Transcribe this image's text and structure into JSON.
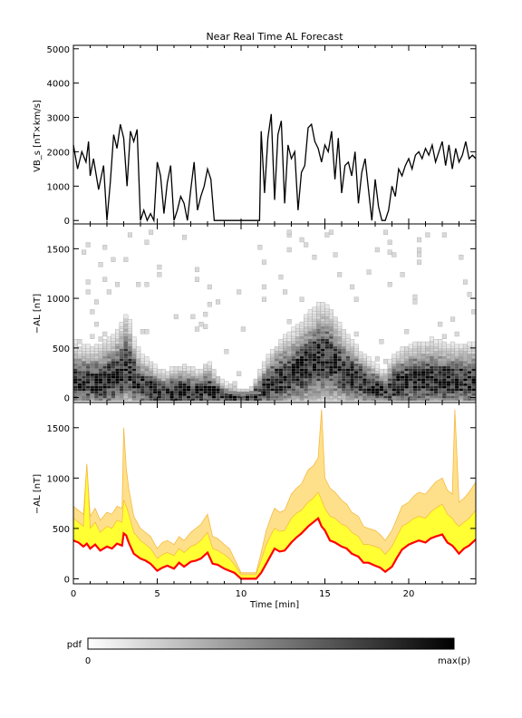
{
  "chart_data": [
    {
      "type": "line",
      "title": "Near Real Time AL Forecast",
      "xlabel": "",
      "ylabel": "VB_s [nT×km/s]",
      "ylim": [
        -100,
        5100
      ],
      "xlim": [
        0,
        24
      ],
      "yticks": [
        "0",
        "1000",
        "2000",
        "3000",
        "4000",
        "5000"
      ],
      "series": [
        {
          "name": "",
          "x": [
            0.0,
            0.25,
            0.5,
            0.75,
            0.9,
            1.0,
            1.2,
            1.5,
            1.8,
            2.0,
            2.2,
            2.4,
            2.6,
            2.8,
            3.0,
            3.2,
            3.4,
            3.6,
            3.8,
            4.0,
            4.2,
            4.4,
            4.6,
            4.8,
            5.0,
            5.2,
            5.4,
            5.6,
            5.8,
            6.0,
            6.2,
            6.4,
            6.6,
            6.8,
            7.0,
            7.2,
            7.4,
            7.6,
            7.8,
            8.0,
            8.2,
            8.4,
            8.6,
            8.8,
            9.0,
            9.5,
            10.0,
            10.5,
            11.0,
            11.1,
            11.2,
            11.4,
            11.6,
            11.8,
            12.0,
            12.2,
            12.4,
            12.6,
            12.8,
            13.0,
            13.2,
            13.4,
            13.6,
            13.8,
            14.0,
            14.2,
            14.4,
            14.6,
            14.8,
            15.0,
            15.2,
            15.4,
            15.6,
            15.8,
            16.0,
            16.2,
            16.4,
            16.6,
            16.8,
            17.0,
            17.2,
            17.4,
            17.6,
            17.8,
            18.0,
            18.2,
            18.4,
            18.6,
            18.8,
            19.0,
            19.2,
            19.4,
            19.6,
            19.8,
            20.0,
            20.2,
            20.4,
            20.6,
            20.8,
            21.0,
            21.2,
            21.4,
            21.6,
            21.8,
            22.0,
            22.2,
            22.4,
            22.6,
            22.8,
            23.0,
            23.2,
            23.4,
            23.6,
            23.8,
            24.0
          ],
          "y": [
            2200,
            1500,
            2000,
            1700,
            2300,
            1300,
            1800,
            900,
            1600,
            0,
            1100,
            2500,
            2100,
            2800,
            2400,
            1000,
            2600,
            2300,
            2650,
            0,
            300,
            0,
            200,
            0,
            1700,
            1300,
            200,
            1100,
            1600,
            0,
            300,
            700,
            500,
            0,
            900,
            1700,
            300,
            700,
            1000,
            1500,
            1200,
            0,
            0,
            0,
            0,
            0,
            0,
            0,
            0,
            0,
            2600,
            800,
            2400,
            3100,
            600,
            2500,
            2900,
            500,
            2200,
            1800,
            2000,
            300,
            1400,
            1600,
            2700,
            2800,
            2300,
            2100,
            1700,
            2200,
            2000,
            2600,
            1200,
            2400,
            800,
            1600,
            1700,
            1300,
            2000,
            500,
            1400,
            1800,
            900,
            0,
            1200,
            400,
            0,
            0,
            300,
            1000,
            700,
            1500,
            1300,
            1600,
            1800,
            1500,
            1900,
            2000,
            1800,
            2100,
            1900,
            2200,
            1700,
            2000,
            2300,
            1600,
            2200,
            1500,
            2100,
            1700,
            1900,
            2300,
            1800,
            1900,
            1800
          ]
        }
      ]
    },
    {
      "type": "heatmap",
      "title": "",
      "xlabel": "",
      "ylabel": "−AL [nT]",
      "ylim": [
        -50,
        1750
      ],
      "xlim": [
        0,
        24
      ],
      "yticks": [
        "0",
        "500",
        "1000",
        "1500"
      ],
      "colorbar": {
        "label": "pdf",
        "min_label": "0",
        "max_label": "max(p)"
      },
      "pdf_peak": {
        "x": [
          0,
          0.5,
          1,
          1.5,
          2,
          2.5,
          3,
          3.2,
          3.5,
          4,
          4.5,
          5,
          5.5,
          6,
          6.5,
          7,
          7.5,
          8,
          8.5,
          9,
          9.5,
          10,
          10.5,
          11,
          11.5,
          12,
          12.5,
          13,
          13.5,
          14,
          14.5,
          15,
          15.5,
          16,
          16.5,
          17,
          17.5,
          18,
          18.5,
          19,
          19.5,
          20,
          20.5,
          21,
          21.5,
          22,
          22.5,
          23,
          23.5,
          24
        ],
        "y": [
          180,
          170,
          190,
          160,
          200,
          220,
          300,
          400,
          250,
          150,
          120,
          80,
          60,
          70,
          90,
          80,
          70,
          110,
          60,
          40,
          30,
          20,
          20,
          60,
          120,
          180,
          220,
          250,
          300,
          350,
          400,
          420,
          380,
          300,
          250,
          200,
          150,
          120,
          80,
          130,
          170,
          190,
          200,
          200,
          200,
          190,
          190,
          190,
          190,
          190
        ]
      },
      "spread": [
        550,
        520,
        500,
        520,
        560,
        600,
        700,
        750,
        560,
        420,
        380,
        320,
        300,
        340,
        360,
        340,
        300,
        380,
        280,
        160,
        140,
        90,
        90,
        260,
        400,
        500,
        560,
        600,
        640,
        700,
        760,
        780,
        700,
        600,
        520,
        440,
        380,
        340,
        260,
        400,
        460,
        500,
        540,
        560,
        560,
        540,
        520,
        520,
        520,
        520
      ]
    },
    {
      "type": "area",
      "title": "",
      "xlabel": "Time [min]",
      "ylabel": "−AL [nT]",
      "ylim": [
        -50,
        1750
      ],
      "xlim": [
        0,
        24
      ],
      "xticks": [
        "0",
        "5",
        "10",
        "15",
        "20"
      ],
      "yticks": [
        "0",
        "500",
        "1000",
        "1500"
      ],
      "series": [
        {
          "name": "",
          "x": [
            0.0,
            0.3,
            0.6,
            0.8,
            1.0,
            1.3,
            1.6,
            2.0,
            2.3,
            2.6,
            2.9,
            3.0,
            3.15,
            3.3,
            3.6,
            4.0,
            4.3,
            4.6,
            5.0,
            5.3,
            5.6,
            6.0,
            6.3,
            6.6,
            7.0,
            7.3,
            7.6,
            8.0,
            8.3,
            8.6,
            9.0,
            9.3,
            9.6,
            10.0,
            10.3,
            10.6,
            10.9,
            11.2,
            11.5,
            11.8,
            12.0,
            12.3,
            12.6,
            13.0,
            13.3,
            13.6,
            14.0,
            14.3,
            14.6,
            14.8,
            15.0,
            15.3,
            15.6,
            16.0,
            16.3,
            16.6,
            17.0,
            17.3,
            17.6,
            18.0,
            18.3,
            18.6,
            19.0,
            19.3,
            19.6,
            20.0,
            20.3,
            20.6,
            21.0,
            21.3,
            21.6,
            22.0,
            22.3,
            22.6,
            22.75,
            23.0,
            23.3,
            23.6,
            24.0
          ],
          "y": [
            380,
            360,
            320,
            350,
            300,
            340,
            280,
            320,
            300,
            350,
            330,
            450,
            430,
            360,
            250,
            200,
            180,
            150,
            80,
            110,
            130,
            100,
            160,
            120,
            170,
            180,
            200,
            260,
            150,
            140,
            100,
            80,
            60,
            0,
            0,
            0,
            0,
            60,
            150,
            240,
            300,
            270,
            280,
            360,
            410,
            450,
            520,
            560,
            600,
            520,
            480,
            380,
            360,
            320,
            300,
            250,
            220,
            160,
            160,
            130,
            110,
            70,
            120,
            210,
            290,
            340,
            360,
            380,
            360,
            400,
            420,
            440,
            360,
            330,
            300,
            250,
            300,
            330,
            390
          ]
        },
        {
          "name": "",
          "x": [
            0.0,
            0.3,
            0.6,
            0.8,
            1.0,
            1.3,
            1.6,
            2.0,
            2.3,
            2.6,
            2.9,
            3.0,
            3.15,
            3.3,
            3.6,
            4.0,
            4.3,
            4.6,
            5.0,
            5.3,
            5.6,
            6.0,
            6.3,
            6.6,
            7.0,
            7.3,
            7.6,
            8.0,
            8.3,
            8.6,
            9.0,
            9.3,
            9.6,
            10.0,
            10.3,
            10.6,
            10.9,
            11.2,
            11.5,
            11.8,
            12.0,
            12.3,
            12.6,
            13.0,
            13.3,
            13.6,
            14.0,
            14.3,
            14.6,
            14.8,
            15.0,
            15.3,
            15.6,
            16.0,
            16.3,
            16.6,
            17.0,
            17.3,
            17.6,
            18.0,
            18.3,
            18.6,
            19.0,
            19.3,
            19.6,
            20.0,
            20.3,
            20.6,
            21.0,
            21.3,
            21.6,
            22.0,
            22.3,
            22.6,
            22.75,
            23.0,
            23.3,
            23.6,
            24.0
          ],
          "y": [
            600,
            560,
            520,
            1140,
            500,
            560,
            460,
            520,
            500,
            580,
            560,
            780,
            720,
            640,
            460,
            380,
            340,
            300,
            200,
            240,
            260,
            230,
            300,
            260,
            320,
            340,
            380,
            460,
            300,
            280,
            240,
            200,
            140,
            40,
            40,
            40,
            40,
            180,
            340,
            440,
            500,
            470,
            480,
            600,
            650,
            680,
            760,
            800,
            860,
            780,
            700,
            620,
            600,
            540,
            520,
            460,
            420,
            340,
            340,
            320,
            300,
            240,
            320,
            420,
            520,
            560,
            600,
            620,
            600,
            660,
            700,
            740,
            640,
            600,
            560,
            520,
            560,
            600,
            680
          ]
        },
        {
          "name": "",
          "x": [
            0.0,
            0.3,
            0.6,
            0.8,
            1.0,
            1.3,
            1.6,
            2.0,
            2.3,
            2.6,
            2.9,
            3.0,
            3.15,
            3.3,
            3.6,
            4.0,
            4.3,
            4.6,
            5.0,
            5.3,
            5.6,
            6.0,
            6.3,
            6.6,
            7.0,
            7.3,
            7.6,
            8.0,
            8.3,
            8.6,
            9.0,
            9.3,
            9.6,
            10.0,
            10.3,
            10.6,
            10.9,
            11.2,
            11.5,
            11.8,
            12.0,
            12.3,
            12.6,
            13.0,
            13.3,
            13.6,
            14.0,
            14.3,
            14.6,
            14.8,
            15.0,
            15.3,
            15.6,
            16.0,
            16.3,
            16.6,
            17.0,
            17.3,
            17.6,
            18.0,
            18.3,
            18.6,
            19.0,
            19.3,
            19.6,
            20.0,
            20.3,
            20.6,
            21.0,
            21.3,
            21.6,
            22.0,
            22.3,
            22.6,
            22.75,
            23.0,
            23.3,
            23.6,
            24.0
          ],
          "y": [
            720,
            680,
            640,
            1140,
            620,
            700,
            580,
            660,
            640,
            720,
            700,
            1500,
            1100,
            900,
            620,
            500,
            460,
            420,
            300,
            360,
            380,
            340,
            420,
            380,
            460,
            500,
            540,
            640,
            420,
            400,
            340,
            300,
            200,
            60,
            60,
            60,
            60,
            260,
            480,
            620,
            700,
            660,
            680,
            840,
            900,
            940,
            1080,
            1120,
            1200,
            1680,
            1000,
            900,
            860,
            780,
            740,
            660,
            620,
            520,
            500,
            480,
            440,
            380,
            480,
            600,
            720,
            760,
            820,
            860,
            840,
            900,
            960,
            1000,
            880,
            840,
            1680,
            760,
            800,
            860,
            960
          ]
        }
      ],
      "colors": {
        "band_inner": "#ffff33",
        "band_outer": "#ffe08a",
        "band_edge": "#f4b942",
        "median": "#ff0000"
      }
    }
  ]
}
